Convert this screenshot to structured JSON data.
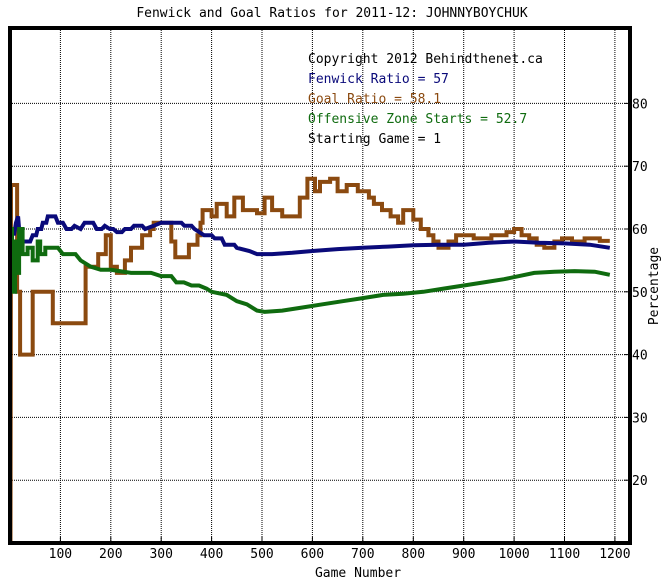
{
  "chart_data": {
    "type": "line",
    "title": "Fenwick and Goal Ratios for 2011-12: JOHNNYBOYCHUK",
    "xlabel": "Game Number",
    "ylabel": "Percentage",
    "xlim": [
      0,
      1230
    ],
    "ylim": [
      10,
      92
    ],
    "x_ticks": [
      100,
      200,
      300,
      400,
      500,
      600,
      700,
      800,
      900,
      1000,
      1100,
      1200
    ],
    "y_ticks": [
      20,
      30,
      40,
      50,
      60,
      70,
      80
    ],
    "grid": true,
    "legend_position": "top-right",
    "annotations": [
      {
        "text": "Copyright 2012 Behindthenet.ca",
        "color": "#000000"
      },
      {
        "text": "Fenwick Ratio = 57",
        "color": "#0a0a7a"
      },
      {
        "text": "Goal Ratio = 58.1",
        "color": "#8b4a10"
      },
      {
        "text": "Offensive Zone Starts = 52.7",
        "color": "#0f6b0f"
      },
      {
        "text": "Starting Game = 1",
        "color": "#000000"
      }
    ],
    "series": [
      {
        "name": "Goal Ratio",
        "color": "#8b4a10",
        "points": [
          [
            1,
            10
          ],
          [
            2,
            67
          ],
          [
            14,
            67
          ],
          [
            14,
            50
          ],
          [
            20,
            50
          ],
          [
            20,
            40
          ],
          [
            45,
            40
          ],
          [
            45,
            50
          ],
          [
            85,
            50
          ],
          [
            85,
            45
          ],
          [
            150,
            45
          ],
          [
            150,
            54
          ],
          [
            175,
            54
          ],
          [
            175,
            56
          ],
          [
            190,
            56
          ],
          [
            190,
            59
          ],
          [
            200,
            59
          ],
          [
            200,
            54
          ],
          [
            212,
            54
          ],
          [
            212,
            53
          ],
          [
            228,
            53
          ],
          [
            228,
            55
          ],
          [
            240,
            55
          ],
          [
            240,
            57
          ],
          [
            262,
            57
          ],
          [
            262,
            59
          ],
          [
            278,
            59
          ],
          [
            278,
            60
          ],
          [
            285,
            60
          ],
          [
            285,
            61
          ],
          [
            320,
            61
          ],
          [
            320,
            58
          ],
          [
            328,
            58
          ],
          [
            328,
            55.5
          ],
          [
            355,
            55.5
          ],
          [
            355,
            57.5
          ],
          [
            372,
            57.5
          ],
          [
            372,
            59
          ],
          [
            378,
            59
          ],
          [
            378,
            61
          ],
          [
            382,
            61
          ],
          [
            382,
            63
          ],
          [
            400,
            63
          ],
          [
            400,
            62
          ],
          [
            410,
            62
          ],
          [
            410,
            64
          ],
          [
            430,
            64
          ],
          [
            430,
            62
          ],
          [
            445,
            62
          ],
          [
            445,
            65
          ],
          [
            462,
            65
          ],
          [
            462,
            63
          ],
          [
            490,
            63
          ],
          [
            490,
            62.5
          ],
          [
            505,
            62.5
          ],
          [
            505,
            65
          ],
          [
            520,
            65
          ],
          [
            520,
            63
          ],
          [
            540,
            63
          ],
          [
            540,
            62
          ],
          [
            575,
            62
          ],
          [
            575,
            65
          ],
          [
            590,
            65
          ],
          [
            590,
            68
          ],
          [
            605,
            68
          ],
          [
            605,
            66
          ],
          [
            615,
            66
          ],
          [
            615,
            67.5
          ],
          [
            635,
            67.5
          ],
          [
            635,
            68
          ],
          [
            650,
            68
          ],
          [
            650,
            66
          ],
          [
            668,
            66
          ],
          [
            668,
            67
          ],
          [
            690,
            67
          ],
          [
            690,
            66
          ],
          [
            712,
            66
          ],
          [
            712,
            65
          ],
          [
            722,
            65
          ],
          [
            722,
            64
          ],
          [
            738,
            64
          ],
          [
            738,
            63
          ],
          [
            755,
            63
          ],
          [
            755,
            62
          ],
          [
            770,
            62
          ],
          [
            770,
            61
          ],
          [
            780,
            61
          ],
          [
            780,
            63
          ],
          [
            800,
            63
          ],
          [
            800,
            61.5
          ],
          [
            815,
            61.5
          ],
          [
            815,
            60
          ],
          [
            830,
            60
          ],
          [
            830,
            59
          ],
          [
            840,
            59
          ],
          [
            840,
            58
          ],
          [
            850,
            58
          ],
          [
            850,
            57
          ],
          [
            870,
            57
          ],
          [
            870,
            58
          ],
          [
            885,
            58
          ],
          [
            885,
            59
          ],
          [
            920,
            59
          ],
          [
            920,
            58.5
          ],
          [
            955,
            58.5
          ],
          [
            955,
            59
          ],
          [
            985,
            59
          ],
          [
            985,
            59.5
          ],
          [
            1000,
            59.5
          ],
          [
            1000,
            60
          ],
          [
            1015,
            60
          ],
          [
            1015,
            59
          ],
          [
            1030,
            59
          ],
          [
            1030,
            58.5
          ],
          [
            1045,
            58.5
          ],
          [
            1045,
            57.5
          ],
          [
            1060,
            57.5
          ],
          [
            1060,
            57
          ],
          [
            1080,
            57
          ],
          [
            1080,
            58
          ],
          [
            1095,
            58
          ],
          [
            1095,
            58.5
          ],
          [
            1115,
            58.5
          ],
          [
            1115,
            58
          ],
          [
            1140,
            58
          ],
          [
            1140,
            58.5
          ],
          [
            1170,
            58.5
          ],
          [
            1170,
            58.1
          ],
          [
            1190,
            58.1
          ]
        ]
      },
      {
        "name": "Fenwick Ratio",
        "color": "#0a0a7a",
        "points": [
          [
            1,
            60
          ],
          [
            5,
            60
          ],
          [
            8,
            59
          ],
          [
            12,
            61
          ],
          [
            16,
            62
          ],
          [
            20,
            58
          ],
          [
            40,
            58
          ],
          [
            45,
            59
          ],
          [
            52,
            59
          ],
          [
            55,
            60
          ],
          [
            62,
            60
          ],
          [
            65,
            61
          ],
          [
            72,
            61
          ],
          [
            75,
            62
          ],
          [
            90,
            62
          ],
          [
            95,
            61
          ],
          [
            105,
            61
          ],
          [
            112,
            60
          ],
          [
            122,
            60
          ],
          [
            128,
            60.5
          ],
          [
            140,
            60
          ],
          [
            148,
            61
          ],
          [
            165,
            61
          ],
          [
            172,
            60
          ],
          [
            182,
            60
          ],
          [
            188,
            60.5
          ],
          [
            198,
            60
          ],
          [
            205,
            60
          ],
          [
            212,
            59.5
          ],
          [
            222,
            59.5
          ],
          [
            228,
            60
          ],
          [
            240,
            60
          ],
          [
            246,
            60.5
          ],
          [
            262,
            60.5
          ],
          [
            268,
            60
          ],
          [
            285,
            60.5
          ],
          [
            300,
            61
          ],
          [
            340,
            61
          ],
          [
            346,
            60.5
          ],
          [
            360,
            60.5
          ],
          [
            366,
            60
          ],
          [
            385,
            59
          ],
          [
            400,
            59
          ],
          [
            406,
            58.5
          ],
          [
            420,
            58.5
          ],
          [
            426,
            57.5
          ],
          [
            445,
            57.5
          ],
          [
            450,
            57
          ],
          [
            475,
            56.5
          ],
          [
            490,
            56
          ],
          [
            520,
            56
          ],
          [
            560,
            56.2
          ],
          [
            600,
            56.5
          ],
          [
            650,
            56.8
          ],
          [
            700,
            57
          ],
          [
            750,
            57.2
          ],
          [
            800,
            57.4
          ],
          [
            850,
            57.5
          ],
          [
            900,
            57.5
          ],
          [
            950,
            57.8
          ],
          [
            1000,
            58
          ],
          [
            1050,
            57.8
          ],
          [
            1100,
            57.7
          ],
          [
            1150,
            57.5
          ],
          [
            1190,
            57
          ]
        ]
      },
      {
        "name": "Offensive Zone Starts",
        "color": "#0f6b0f",
        "points": [
          [
            1,
            60
          ],
          [
            4,
            60
          ],
          [
            4,
            50
          ],
          [
            10,
            50
          ],
          [
            10,
            58
          ],
          [
            14,
            58
          ],
          [
            14,
            53
          ],
          [
            18,
            53
          ],
          [
            18,
            60
          ],
          [
            25,
            60
          ],
          [
            25,
            56
          ],
          [
            35,
            56
          ],
          [
            35,
            57
          ],
          [
            45,
            57
          ],
          [
            45,
            55
          ],
          [
            55,
            55
          ],
          [
            55,
            58
          ],
          [
            60,
            58
          ],
          [
            60,
            56
          ],
          [
            70,
            56
          ],
          [
            70,
            57
          ],
          [
            95,
            57
          ],
          [
            105,
            56
          ],
          [
            130,
            56
          ],
          [
            140,
            55
          ],
          [
            160,
            54
          ],
          [
            180,
            53.5
          ],
          [
            200,
            53.5
          ],
          [
            240,
            53
          ],
          [
            280,
            53
          ],
          [
            300,
            52.5
          ],
          [
            320,
            52.5
          ],
          [
            330,
            51.5
          ],
          [
            345,
            51.5
          ],
          [
            360,
            51
          ],
          [
            375,
            51
          ],
          [
            390,
            50.5
          ],
          [
            400,
            50
          ],
          [
            430,
            49.5
          ],
          [
            450,
            48.5
          ],
          [
            470,
            48
          ],
          [
            490,
            47
          ],
          [
            505,
            46.8
          ],
          [
            540,
            47
          ],
          [
            580,
            47.5
          ],
          [
            620,
            48
          ],
          [
            660,
            48.5
          ],
          [
            700,
            49
          ],
          [
            740,
            49.5
          ],
          [
            780,
            49.7
          ],
          [
            820,
            50
          ],
          [
            860,
            50.5
          ],
          [
            900,
            51
          ],
          [
            940,
            51.5
          ],
          [
            980,
            52
          ],
          [
            1010,
            52.5
          ],
          [
            1040,
            53
          ],
          [
            1080,
            53.2
          ],
          [
            1120,
            53.3
          ],
          [
            1160,
            53.2
          ],
          [
            1190,
            52.7
          ]
        ]
      }
    ]
  }
}
